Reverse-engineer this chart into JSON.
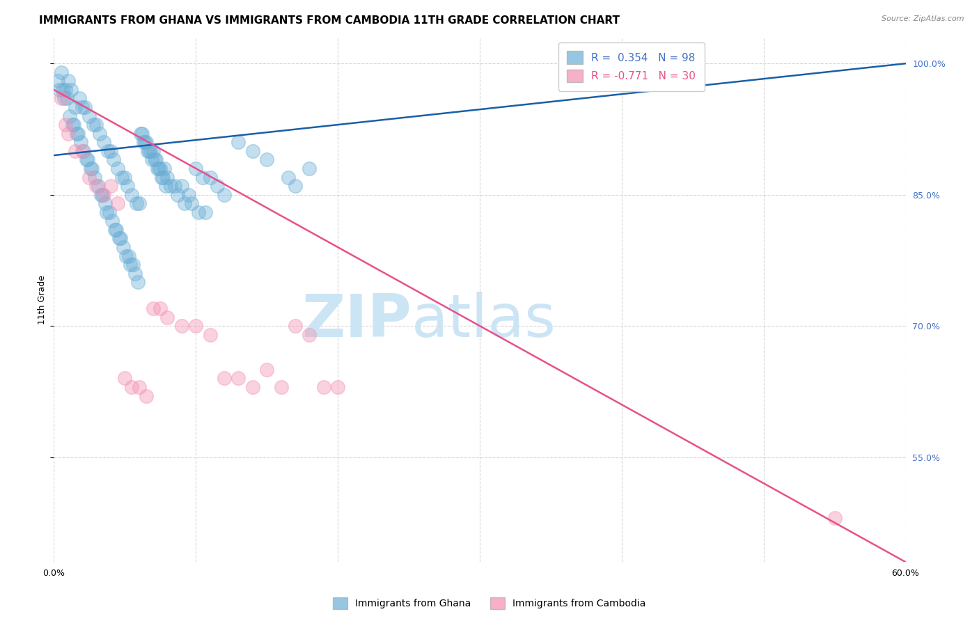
{
  "title": "IMMIGRANTS FROM GHANA VS IMMIGRANTS FROM CAMBODIA 11TH GRADE CORRELATION CHART",
  "source": "Source: ZipAtlas.com",
  "ylabel": "11th Grade",
  "right_yticks": [
    55.0,
    70.0,
    85.0,
    100.0
  ],
  "right_ytick_labels": [
    "55.0%",
    "70.0%",
    "85.0%",
    "100.0%"
  ],
  "xlim": [
    0,
    60
  ],
  "ylim": [
    43,
    103
  ],
  "legend_entries": [
    {
      "label": "Immigrants from Ghana",
      "R": "0.354",
      "N": "98",
      "color": "#7bafd4"
    },
    {
      "label": "Immigrants from Cambodia",
      "R": "-0.771",
      "N": "30",
      "color": "#f4a0b5"
    }
  ],
  "ghana_scatter_x": [
    0.5,
    0.8,
    1.0,
    1.2,
    1.5,
    1.8,
    2.0,
    2.2,
    2.5,
    2.8,
    3.0,
    3.2,
    3.5,
    3.8,
    4.0,
    4.2,
    4.5,
    4.8,
    5.0,
    5.2,
    5.5,
    5.8,
    6.0,
    6.2,
    6.5,
    6.8,
    7.0,
    7.2,
    7.5,
    7.8,
    8.0,
    8.5,
    9.0,
    9.5,
    10.0,
    10.5,
    11.0,
    11.5,
    12.0,
    13.0,
    14.0,
    15.0,
    16.5,
    17.0,
    18.0,
    0.3,
    0.4,
    0.6,
    0.7,
    0.9,
    1.1,
    1.3,
    1.4,
    1.6,
    1.7,
    1.9,
    2.1,
    2.3,
    2.4,
    2.6,
    2.7,
    2.9,
    3.1,
    3.3,
    3.4,
    3.6,
    3.7,
    3.9,
    4.1,
    4.3,
    4.4,
    4.6,
    4.7,
    4.9,
    5.1,
    5.3,
    5.4,
    5.6,
    5.7,
    5.9,
    6.1,
    6.3,
    6.4,
    6.6,
    6.7,
    6.9,
    7.1,
    7.3,
    7.4,
    7.6,
    7.7,
    7.9,
    8.2,
    8.7,
    9.2,
    9.7,
    10.2,
    10.7
  ],
  "ghana_scatter_y": [
    99,
    97,
    98,
    97,
    95,
    96,
    95,
    95,
    94,
    93,
    93,
    92,
    91,
    90,
    90,
    89,
    88,
    87,
    87,
    86,
    85,
    84,
    84,
    92,
    91,
    90,
    90,
    89,
    88,
    88,
    87,
    86,
    86,
    85,
    88,
    87,
    87,
    86,
    85,
    91,
    90,
    89,
    87,
    86,
    88,
    98,
    97,
    97,
    96,
    96,
    94,
    93,
    93,
    92,
    92,
    91,
    90,
    89,
    89,
    88,
    88,
    87,
    86,
    85,
    85,
    84,
    83,
    83,
    82,
    81,
    81,
    80,
    80,
    79,
    78,
    78,
    77,
    77,
    76,
    75,
    92,
    91,
    91,
    90,
    90,
    89,
    89,
    88,
    88,
    87,
    87,
    86,
    86,
    85,
    84,
    84,
    83,
    83
  ],
  "cambodia_scatter_x": [
    0.5,
    0.8,
    1.0,
    1.5,
    2.0,
    2.5,
    3.0,
    3.5,
    4.0,
    4.5,
    5.0,
    5.5,
    6.0,
    6.5,
    7.0,
    7.5,
    8.0,
    9.0,
    10.0,
    11.0,
    12.0,
    13.0,
    14.0,
    15.0,
    16.0,
    17.0,
    18.0,
    19.0,
    20.0,
    55.0
  ],
  "cambodia_scatter_y": [
    96,
    93,
    92,
    90,
    90,
    87,
    86,
    85,
    86,
    84,
    64,
    63,
    63,
    62,
    72,
    72,
    71,
    70,
    70,
    69,
    64,
    64,
    63,
    65,
    63,
    70,
    69,
    63,
    63,
    48
  ],
  "ghana_line_x": [
    0,
    60
  ],
  "ghana_line_y": [
    89.5,
    100.0
  ],
  "cambodia_line_x": [
    0,
    60
  ],
  "cambodia_line_y": [
    97.0,
    43.0
  ],
  "scatter_color_ghana": "#6baed6",
  "scatter_color_cambodia": "#f48fb1",
  "line_color_ghana": "#1a5fa8",
  "line_color_cambodia": "#e8508a",
  "background_color": "#ffffff",
  "grid_color": "#cccccc",
  "watermark_zip": "ZIP",
  "watermark_atlas": "atlas",
  "watermark_color": "#cce5f5",
  "title_fontsize": 11,
  "axis_label_fontsize": 9,
  "tick_fontsize": 9,
  "legend_fontsize": 11,
  "source_fontsize": 8
}
